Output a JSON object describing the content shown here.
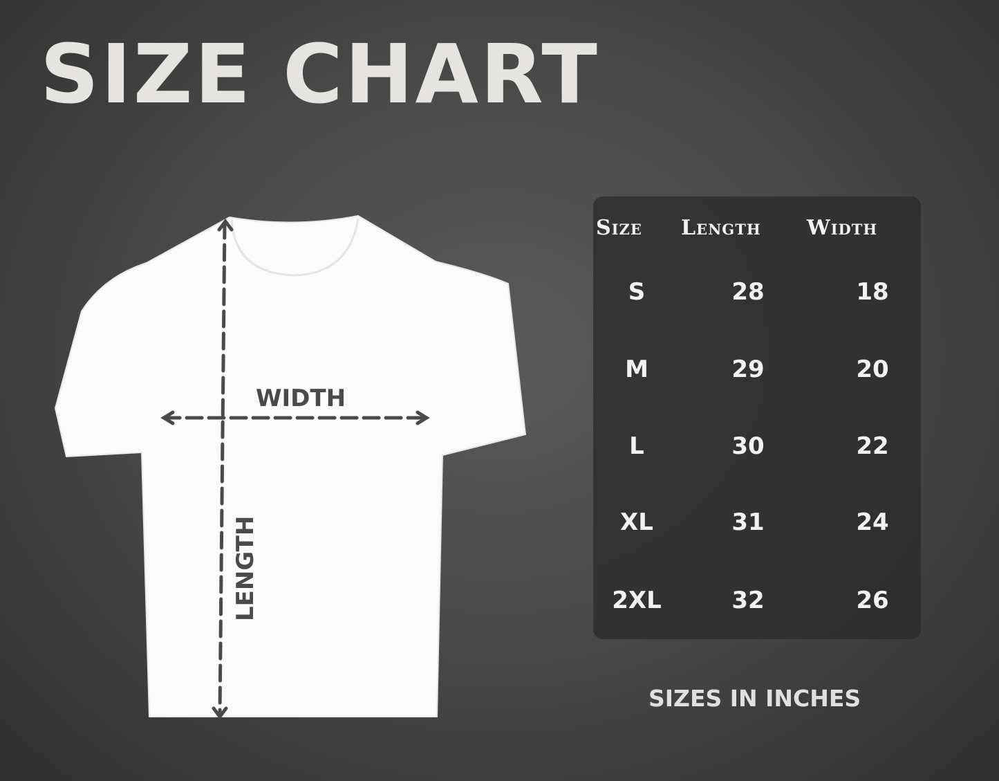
{
  "title": "SIZE CHART",
  "diagram": {
    "width_label": "WIDTH",
    "length_label": "LENGTH",
    "arrow_color": "#4a4a4a",
    "shirt_color": "#ffffff"
  },
  "table": {
    "headers": [
      "Size",
      "Length",
      "Width"
    ],
    "rows": [
      {
        "size": "S",
        "length": "28",
        "width": "18"
      },
      {
        "size": "M",
        "length": "29",
        "width": "20"
      },
      {
        "size": "L",
        "length": "30",
        "width": "22"
      },
      {
        "size": "XL",
        "length": "31",
        "width": "24"
      },
      {
        "size": "2XL",
        "length": "32",
        "width": "26"
      }
    ]
  },
  "footer": "SIZES IN INCHES"
}
